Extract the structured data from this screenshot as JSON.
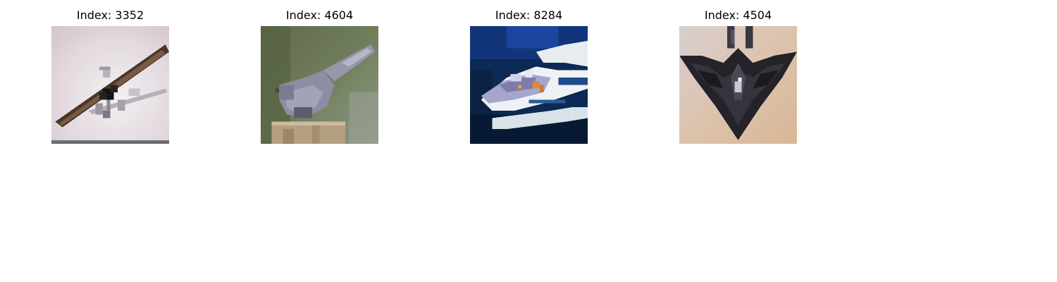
{
  "panels": [
    {
      "title": "Index: 3352",
      "subject": "biplane in sky"
    },
    {
      "title": "Index: 4604",
      "subject": "bird perched on post"
    },
    {
      "title": "Index: 8284",
      "subject": "boat on water"
    },
    {
      "title": "Index: 4504",
      "subject": "stealth aircraft model"
    }
  ]
}
